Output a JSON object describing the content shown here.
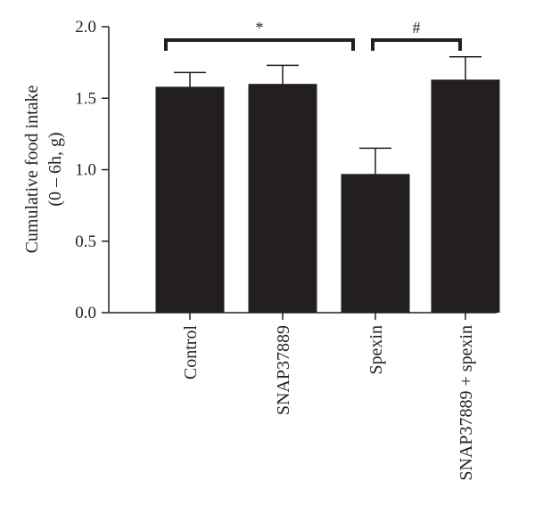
{
  "chart_data": {
    "type": "bar",
    "categories": [
      "Control",
      "SNAP37889",
      "Spexin",
      "SNAP37889 + spexin"
    ],
    "values": [
      1.58,
      1.6,
      0.97,
      1.63
    ],
    "errors": [
      0.1,
      0.13,
      0.18,
      0.16
    ],
    "ylabel_line1": "Cumulative food intake",
    "ylabel_line2": "(0 – 6h, g)",
    "ylim": [
      0,
      2.0
    ],
    "yticks": [
      "0.0",
      "0.5",
      "1.0",
      "1.5",
      "2.0"
    ],
    "bar_color": "#231f20",
    "grid": false,
    "significance": [
      {
        "label": "*",
        "from": 0,
        "to": 2
      },
      {
        "label": "#",
        "from": 2,
        "to": 3
      }
    ]
  }
}
